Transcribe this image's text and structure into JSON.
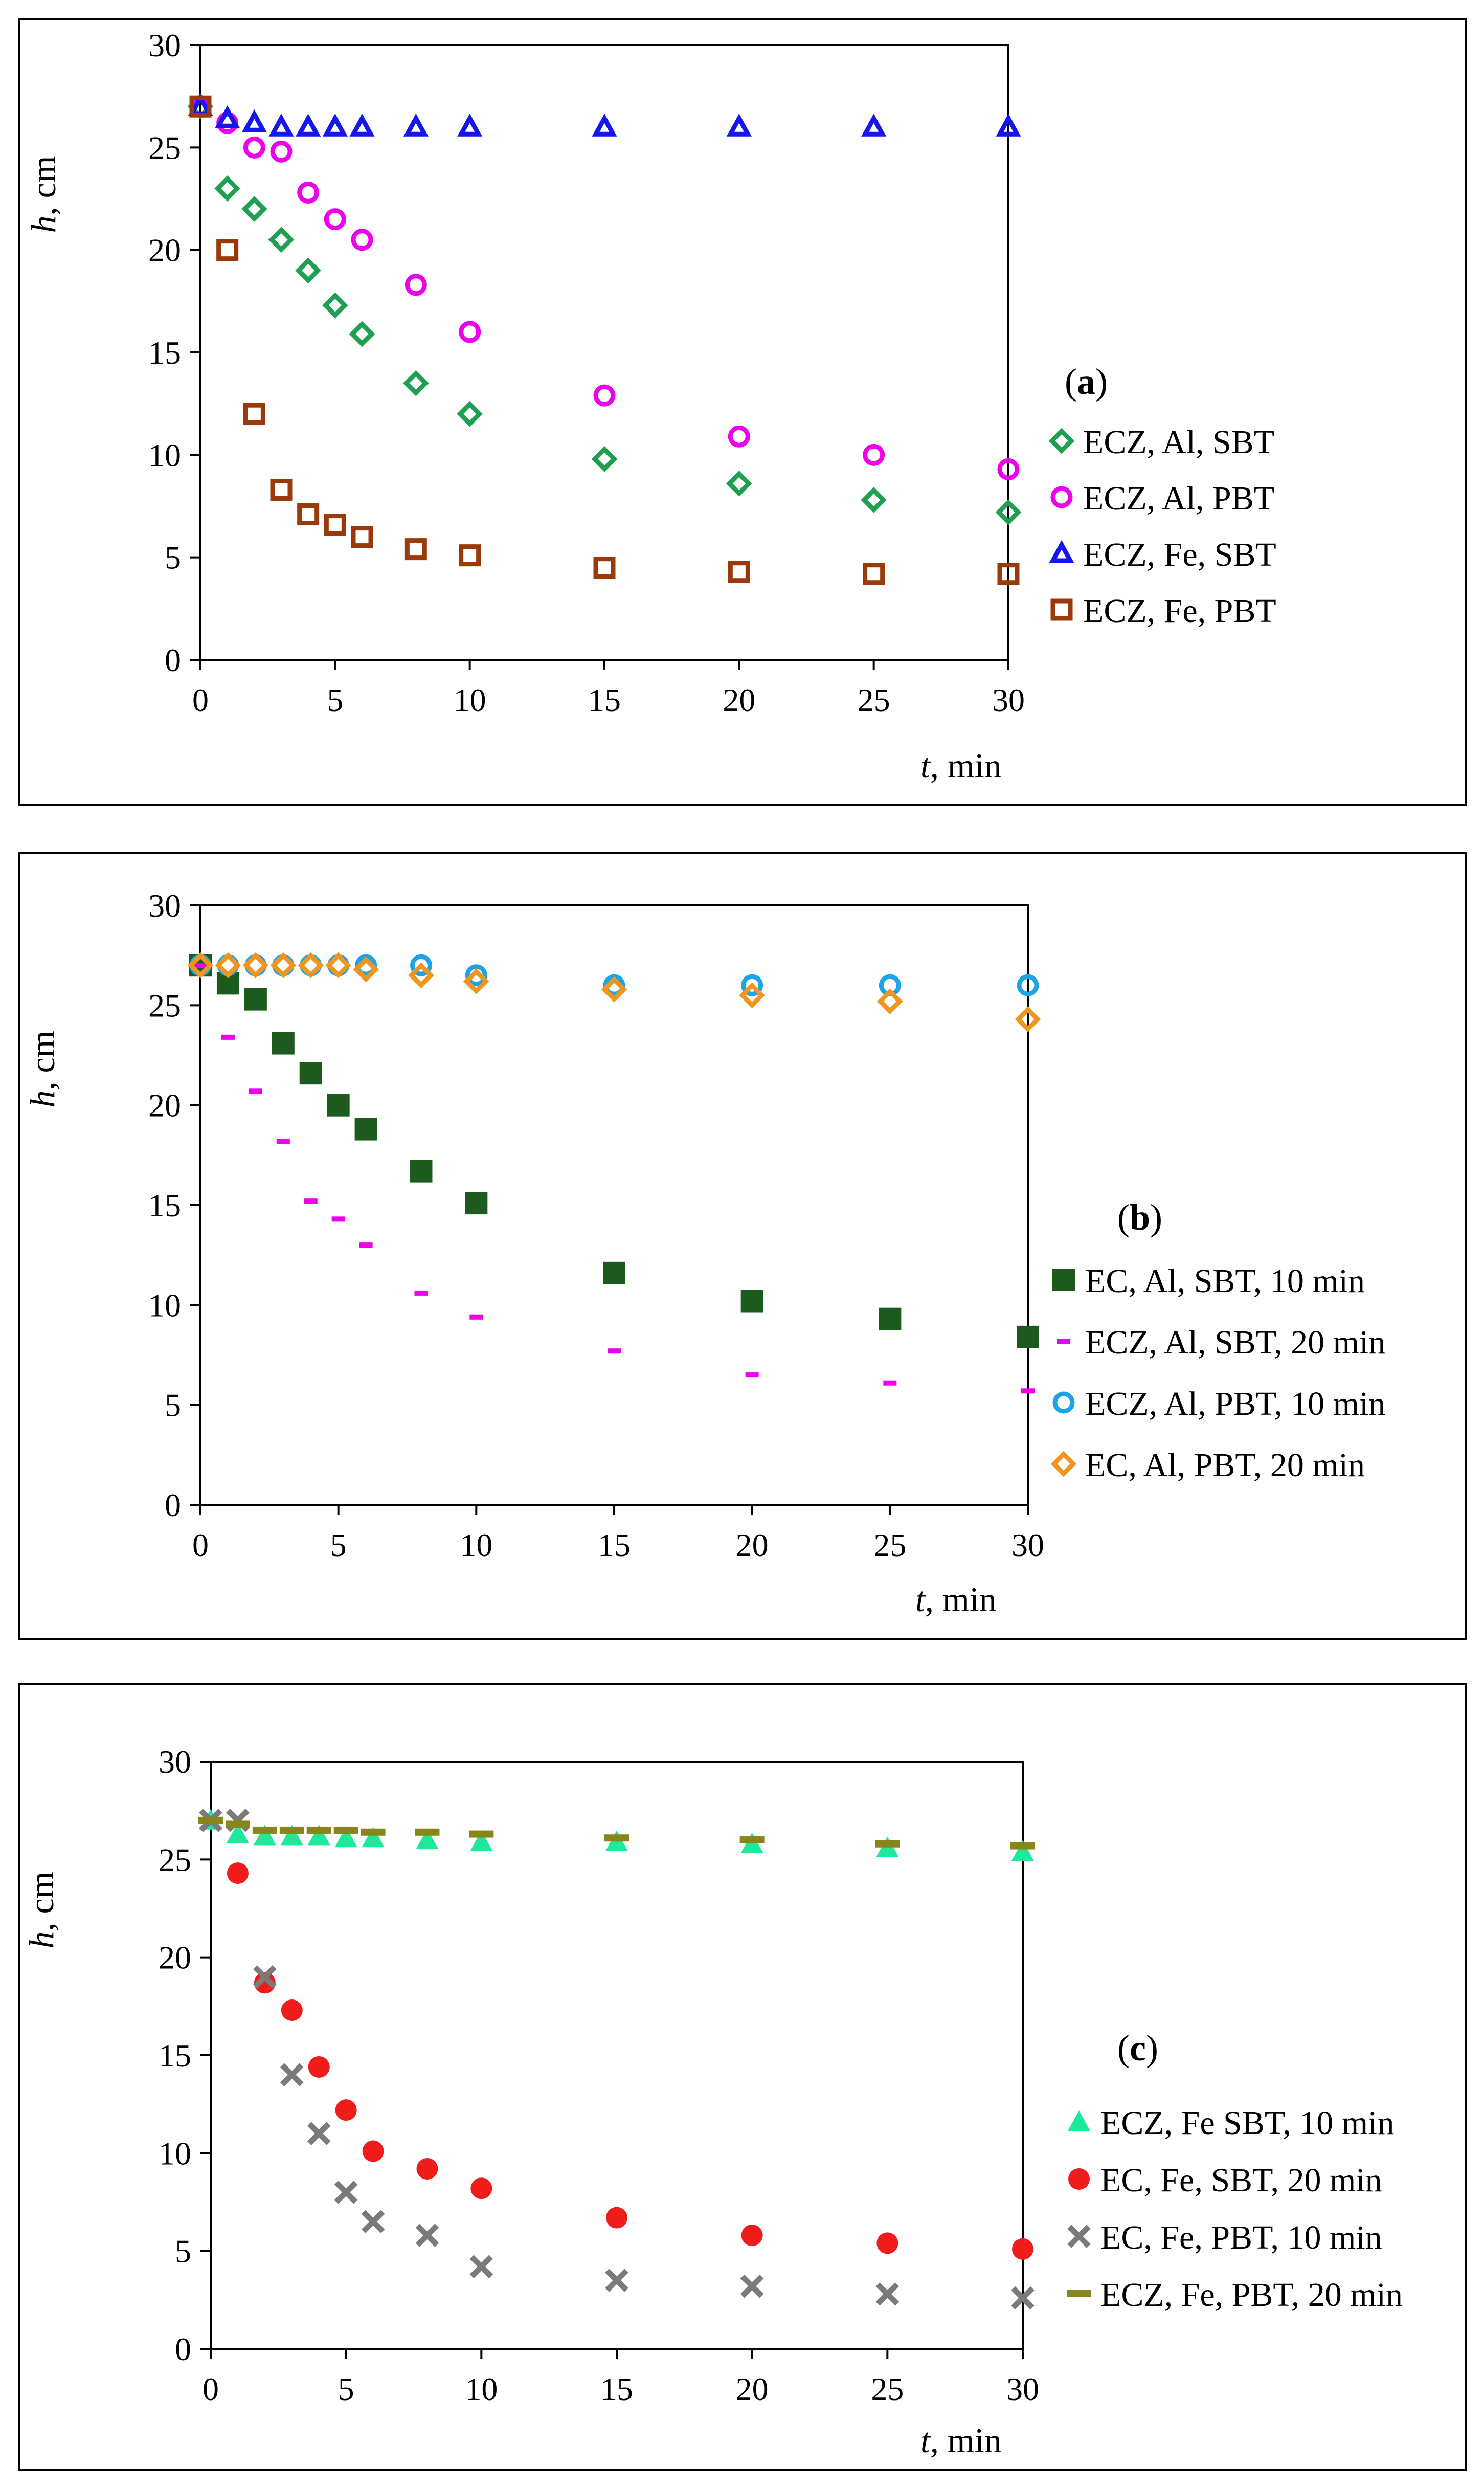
{
  "chart_data": [
    {
      "type": "scatter",
      "panel_label": "a",
      "xlabel_var": "t",
      "xlabel_unit": ", min",
      "ylabel_var": "h",
      "ylabel_unit": ", cm",
      "xlim": [
        0,
        30
      ],
      "ylim": [
        0,
        30
      ],
      "xticks": [
        0,
        5,
        10,
        15,
        20,
        25,
        30
      ],
      "yticks": [
        0,
        5,
        10,
        15,
        20,
        25,
        30
      ],
      "grid": false,
      "legend_position": "right",
      "series": [
        {
          "name": "ECZ, Al, SBT",
          "marker": "diamond-open",
          "color": "#1fa050",
          "x": [
            0,
            1,
            2,
            3,
            4,
            5,
            6,
            8,
            10,
            15,
            20,
            25,
            30
          ],
          "y": [
            27,
            23,
            22,
            20.5,
            19,
            17.3,
            15.9,
            13.5,
            12,
            9.8,
            8.6,
            7.8,
            7.2
          ]
        },
        {
          "name": "ECZ, Al, PBT",
          "marker": "circle-open",
          "color": "#ee00ee",
          "x": [
            0,
            1,
            2,
            3,
            4,
            5,
            6,
            8,
            10,
            15,
            20,
            25,
            30
          ],
          "y": [
            27,
            26.2,
            25,
            24.8,
            22.8,
            21.5,
            20.5,
            18.3,
            16,
            12.9,
            10.9,
            10,
            9.3
          ]
        },
        {
          "name": "ECZ, Fe, SBT",
          "marker": "triangle-open",
          "color": "#1515ee",
          "x": [
            0,
            1,
            2,
            3,
            4,
            5,
            6,
            8,
            10,
            15,
            20,
            25,
            30
          ],
          "y": [
            27,
            26.4,
            26.2,
            26,
            26,
            26,
            26,
            26,
            26,
            26,
            26,
            26,
            26
          ]
        },
        {
          "name": "ECZ, Fe, PBT",
          "marker": "square-open",
          "color": "#9a3a0a",
          "x": [
            0,
            1,
            2,
            3,
            4,
            5,
            6,
            8,
            10,
            15,
            20,
            25,
            30
          ],
          "y": [
            27,
            20,
            12,
            8.3,
            7.1,
            6.6,
            6,
            5.4,
            5.1,
            4.5,
            4.3,
            4.2,
            4.2
          ]
        }
      ]
    },
    {
      "type": "scatter",
      "panel_label": "b",
      "xlabel_var": "t",
      "xlabel_unit": ", min",
      "ylabel_var": "h",
      "ylabel_unit": ", cm",
      "xlim": [
        0,
        30
      ],
      "ylim": [
        0,
        30
      ],
      "xticks": [
        0,
        5,
        10,
        15,
        20,
        25,
        30
      ],
      "yticks": [
        0,
        5,
        10,
        15,
        20,
        25,
        30
      ],
      "grid": false,
      "legend_position": "right",
      "series": [
        {
          "name": "EC, Al, SBT, 10 min",
          "marker": "square-filled",
          "color": "#1d5a1d",
          "x": [
            0,
            1,
            2,
            3,
            4,
            5,
            6,
            8,
            10,
            15,
            20,
            25,
            30
          ],
          "y": [
            27,
            26.1,
            25.3,
            23.1,
            21.6,
            20,
            18.8,
            16.7,
            15.1,
            11.6,
            10.2,
            9.3,
            8.4
          ]
        },
        {
          "name": "ECZ, Al, SBT, 20 min",
          "marker": "dash",
          "color": "#ee00ee",
          "x": [
            0,
            1,
            2,
            3,
            4,
            5,
            6,
            8,
            10,
            15,
            20,
            25,
            30
          ],
          "y": [
            27,
            23.4,
            20.7,
            18.2,
            15.2,
            14.3,
            13,
            10.6,
            9.4,
            7.7,
            6.5,
            6.1,
            5.7
          ]
        },
        {
          "name": "ECZ, Al, PBT, 10 min",
          "marker": "circle-open",
          "color": "#1ca4e8",
          "x": [
            0,
            1,
            2,
            3,
            4,
            5,
            6,
            8,
            10,
            15,
            20,
            25,
            30
          ],
          "y": [
            27,
            27,
            27,
            27,
            27,
            27,
            27,
            27,
            26.5,
            26,
            26,
            26,
            26
          ]
        },
        {
          "name": "EC, Al, PBT, 20 min",
          "marker": "diamond-open",
          "color": "#f0961e",
          "x": [
            0,
            1,
            2,
            3,
            4,
            5,
            6,
            8,
            10,
            15,
            20,
            25,
            30
          ],
          "y": [
            27,
            27,
            27,
            27,
            27,
            27,
            26.8,
            26.5,
            26.2,
            25.8,
            25.5,
            25.2,
            24.3
          ]
        }
      ]
    },
    {
      "type": "scatter",
      "panel_label": "c",
      "xlabel_var": "t",
      "xlabel_unit": ", min",
      "ylabel_var": "h",
      "ylabel_unit": ", cm",
      "xlim": [
        0,
        30
      ],
      "ylim": [
        0,
        30
      ],
      "xticks": [
        0,
        5,
        10,
        15,
        20,
        25,
        30
      ],
      "yticks": [
        0,
        5,
        10,
        15,
        20,
        25,
        30
      ],
      "grid": false,
      "legend_position": "right",
      "series": [
        {
          "name": "ECZ, Fe SBT, 10 min",
          "marker": "triangle-filled",
          "color": "#1ee89a",
          "x": [
            0,
            1,
            2,
            3,
            4,
            5,
            6,
            8,
            10,
            15,
            20,
            25,
            30
          ],
          "y": [
            27,
            26.3,
            26.2,
            26.2,
            26.2,
            26.1,
            26.1,
            26,
            25.9,
            25.9,
            25.8,
            25.6,
            25.4
          ]
        },
        {
          "name": "EC, Fe, SBT, 20 min",
          "marker": "circle-filled",
          "color": "#f01c1c",
          "x": [
            1,
            2,
            3,
            4,
            5,
            6,
            8,
            10,
            15,
            20,
            25,
            30
          ],
          "y": [
            24.3,
            18.7,
            17.3,
            14.4,
            12.2,
            10.1,
            9.2,
            8.2,
            6.7,
            5.8,
            5.4,
            5.1
          ]
        },
        {
          "name": "EC, Fe, PBT, 10 min",
          "marker": "x",
          "color": "#7a7a7a",
          "x": [
            0,
            1,
            2,
            3,
            4,
            5,
            6,
            8,
            10,
            15,
            20,
            25,
            30
          ],
          "y": [
            27,
            27,
            19,
            14,
            11,
            8,
            6.5,
            5.8,
            4.2,
            3.5,
            3.2,
            2.8,
            2.6
          ]
        },
        {
          "name": "ECZ, Fe, PBT, 20 min",
          "marker": "dash-bold",
          "color": "#86861a",
          "x": [
            0,
            1,
            2,
            3,
            4,
            5,
            6,
            8,
            10,
            15,
            20,
            25,
            30
          ],
          "y": [
            27,
            26.8,
            26.5,
            26.5,
            26.5,
            26.5,
            26.4,
            26.4,
            26.3,
            26.1,
            26,
            25.8,
            25.7
          ]
        }
      ]
    }
  ]
}
